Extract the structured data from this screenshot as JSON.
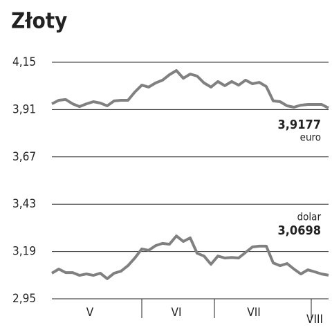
{
  "chart_data": {
    "type": "line",
    "title": "Złoty",
    "months": [
      "V",
      "VI",
      "VII",
      "VIII"
    ],
    "ylim": [
      2.95,
      4.15
    ],
    "yticks": [
      {
        "value": 4.15,
        "label": "4,15"
      },
      {
        "value": 3.91,
        "label": "3,91"
      },
      {
        "value": 3.67,
        "label": "3,67"
      },
      {
        "value": 3.43,
        "label": "3,43"
      },
      {
        "value": 3.19,
        "label": "3,19"
      },
      {
        "value": 2.95,
        "label": "2,95"
      }
    ],
    "grid": true,
    "series": [
      {
        "name": "euro",
        "color": "#808080",
        "values": [
          3.939,
          3.957,
          3.961,
          3.939,
          3.925,
          3.939,
          3.95,
          3.943,
          3.929,
          3.954,
          3.957,
          3.957,
          3.999,
          4.034,
          4.024,
          4.045,
          4.059,
          4.087,
          4.108,
          4.069,
          4.09,
          4.08,
          4.045,
          4.024,
          4.052,
          4.031,
          4.052,
          4.034,
          4.059,
          4.041,
          4.048,
          4.027,
          3.954,
          3.95,
          3.929,
          3.922,
          3.932,
          3.936,
          3.936,
          3.936,
          3.9177
        ],
        "value_labels": [
          null,
          null,
          null,
          null,
          null,
          null,
          null,
          null,
          null,
          null,
          null,
          null,
          null,
          null,
          null,
          null,
          null,
          null,
          null,
          null,
          null,
          null,
          null,
          null,
          null,
          null,
          null,
          null,
          null,
          null,
          null,
          null,
          null,
          null,
          null,
          null,
          null,
          null,
          null,
          null,
          "3,9177"
        ]
      },
      {
        "name": "dolar",
        "color": "#808080",
        "values": [
          3.08,
          3.101,
          3.083,
          3.083,
          3.069,
          3.076,
          3.069,
          3.08,
          3.052,
          3.08,
          3.09,
          3.118,
          3.157,
          3.203,
          3.196,
          3.22,
          3.231,
          3.227,
          3.269,
          3.241,
          3.259,
          3.181,
          3.167,
          3.125,
          3.167,
          3.157,
          3.16,
          3.157,
          3.185,
          3.213,
          3.217,
          3.217,
          3.132,
          3.118,
          3.129,
          3.101,
          3.076,
          3.097,
          3.087,
          3.076,
          3.0698
        ],
        "value_labels": [
          null,
          null,
          null,
          null,
          null,
          null,
          null,
          null,
          null,
          null,
          null,
          null,
          null,
          null,
          null,
          null,
          null,
          null,
          null,
          null,
          null,
          null,
          null,
          null,
          null,
          null,
          null,
          null,
          null,
          null,
          null,
          null,
          null,
          null,
          null,
          null,
          null,
          null,
          null,
          null,
          "3,0698"
        ]
      }
    ]
  }
}
